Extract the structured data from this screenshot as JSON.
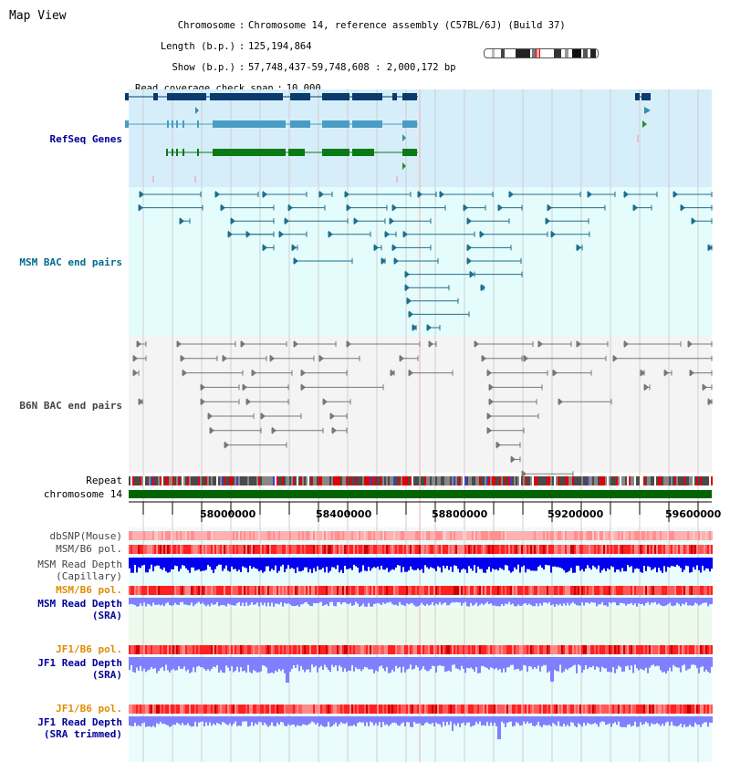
{
  "view_title": "Map View",
  "header": {
    "chromosome_key": "Chromosome",
    "chromosome_val": "Chromosome 14, reference assembly (C57BL/6J) (Build 37)",
    "length_key": "Length (b.p.)",
    "length_val": "125,194,864",
    "show_key": "Show (b.p.)",
    "show_val": "57,748,437-59,748,608 : 2,000,172 bp",
    "coverage_key": "Read coverage check span",
    "coverage_val": "10,000"
  },
  "tracks": {
    "refseq": "RefSeq Genes",
    "msm_bac": "MSM BAC end pairs",
    "b6n_bac": "B6N BAC end pairs",
    "repeat": "Repeat",
    "chromosome": "chromosome 14",
    "dbsnp": "dbSNP(Mouse)",
    "msm_b6_pol_1": "MSM/B6 pol.",
    "msm_read_depth_cap_1": "MSM Read Depth",
    "msm_read_depth_cap_2": "(Capillary)",
    "msm_b6_pol_2": "MSM/B6 pol.",
    "msm_read_depth_sra_1": "MSM Read Depth",
    "msm_read_depth_sra_2": "(SRA)",
    "jf1_b6_pol_1": "JF1/B6 pol.",
    "jf1_read_depth_sra_1": "JF1 Read Depth",
    "jf1_read_depth_sra_2": "(SRA)",
    "jf1_b6_pol_2": "JF1/B6 pol.",
    "jf1_read_depth_trim_1": "JF1 Read Depth",
    "jf1_read_depth_trim_2": "(SRA trimmed)"
  },
  "axis": {
    "ticks": [
      "58000000",
      "58400000",
      "58800000",
      "59200000",
      "59600000"
    ]
  },
  "colors": {
    "refseq_bg": "#d6eefa",
    "msm_bg": "#e4fcfc",
    "b6n_bg": "#f4f4f4",
    "refseq_dark": "#0b3a6e",
    "refseq_mid": "#4a9cc4",
    "refseq_green": "#0a7a14",
    "msm_line": "#1e6e8e",
    "b6n_line": "#777777",
    "chromosome_bar": "#006400",
    "depth_capillary": "#0000ee",
    "depth_sra": "#7f7fff",
    "label_blue": "#000099",
    "label_teal": "#006c8c",
    "label_orange": "#e38b00",
    "label_grey": "#444444"
  }
}
